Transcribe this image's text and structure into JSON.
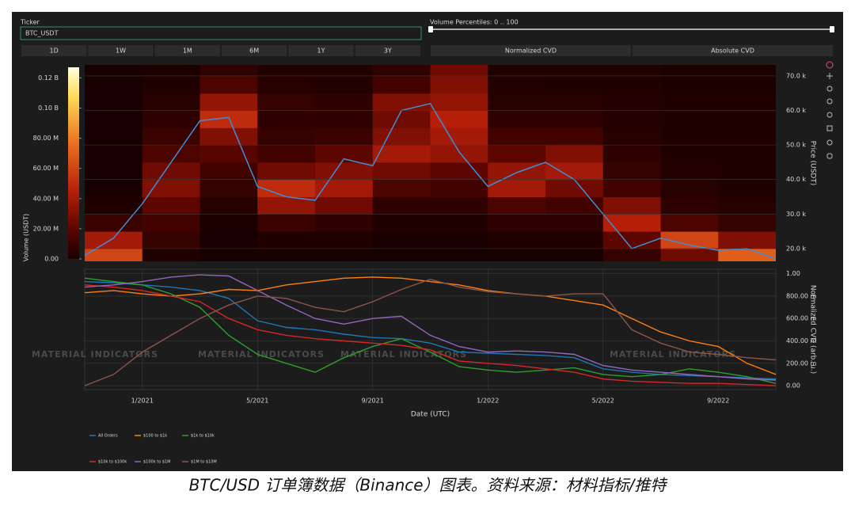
{
  "controls": {
    "ticker_label": "Ticker",
    "ticker_value": "BTC_USDT",
    "slider_label": "Volume Percentiles: 0 .. 100",
    "ranges": [
      "1D",
      "1W",
      "1M",
      "6M",
      "1Y",
      "3Y"
    ],
    "modes": [
      "Normalized CVD",
      "Absolute CVD"
    ]
  },
  "chart_data": [
    {
      "type": "heatmap",
      "x": [
        "11/2020",
        "12/2020",
        "1/2021",
        "2/2021",
        "3/2021",
        "4/2021",
        "5/2021",
        "6/2021",
        "7/2021",
        "8/2021",
        "9/2021",
        "10/2021",
        "11/2021",
        "12/2021",
        "1/2022",
        "2/2022",
        "3/2022",
        "4/2022",
        "5/2022",
        "6/2022",
        "7/2022",
        "8/2022",
        "9/2022",
        "10/2022",
        "11/2022"
      ],
      "values": [
        18000,
        23000,
        33000,
        45000,
        57000,
        58000,
        38000,
        35000,
        34000,
        46000,
        44000,
        60000,
        62000,
        48000,
        38000,
        42000,
        45000,
        40000,
        30000,
        20000,
        23000,
        21000,
        19500,
        20000,
        17000
      ],
      "line_color": "#3f8fd8",
      "y_label": "Price (USDT)",
      "ylim": [
        16300,
        73200
      ],
      "yticks": [
        {
          "value": 20000,
          "label": "20.0 k"
        },
        {
          "value": 30000,
          "label": "30.0 k"
        },
        {
          "value": 40000,
          "label": "40.0 k"
        },
        {
          "value": 50000,
          "label": "50.0 k"
        },
        {
          "value": 60000,
          "label": "60.0 k"
        },
        {
          "value": 70000,
          "label": "70.0 k"
        }
      ],
      "xbins": [
        "11/2020",
        "1/2021",
        "3/2021",
        "5/2021",
        "7/2021",
        "9/2021",
        "11/2021",
        "1/2022",
        "3/2022",
        "5/2022",
        "7/2022",
        "9/2022",
        "11/2022"
      ],
      "ybins": [
        15000,
        20000,
        25000,
        30000,
        35000,
        40000,
        45000,
        50000,
        55000,
        60000,
        65000,
        70000,
        75000
      ],
      "z": [
        [
          60000000.0,
          2000000.0,
          0,
          0,
          0,
          0,
          0,
          0,
          0,
          8000000.0,
          25000000.0,
          70000000.0
        ],
        [
          40000000.0,
          8000000.0,
          0,
          2000000.0,
          2000000.0,
          0,
          0,
          2000000.0,
          2000000.0,
          20000000.0,
          60000000.0,
          30000000.0
        ],
        [
          10000000.0,
          12000000.0,
          1000000.0,
          10000000.0,
          6000000.0,
          2000000.0,
          2000000.0,
          6000000.0,
          6000000.0,
          45000000.0,
          15000000.0,
          8000000.0
        ],
        [
          2000000.0,
          20000000.0,
          4000000.0,
          35000000.0,
          25000000.0,
          6000000.0,
          6000000.0,
          15000000.0,
          12000000.0,
          30000000.0,
          6000000.0,
          4000000.0
        ],
        [
          0,
          30000000.0,
          8000000.0,
          50000000.0,
          40000000.0,
          15000000.0,
          12000000.0,
          40000000.0,
          25000000.0,
          12000000.0,
          4000000.0,
          2000000.0
        ],
        [
          0,
          25000000.0,
          12000000.0,
          25000000.0,
          30000000.0,
          25000000.0,
          20000000.0,
          35000000.0,
          40000000.0,
          8000000.0,
          3000000.0,
          2000000.0
        ],
        [
          0,
          15000000.0,
          18000000.0,
          12000000.0,
          20000000.0,
          40000000.0,
          35000000.0,
          20000000.0,
          30000000.0,
          6000000.0,
          2000000.0,
          2000000.0
        ],
        [
          0,
          10000000.0,
          30000000.0,
          8000000.0,
          10000000.0,
          30000000.0,
          40000000.0,
          12000000.0,
          12000000.0,
          4000000.0,
          2000000.0,
          2000000.0
        ],
        [
          0,
          6000000.0,
          50000000.0,
          6000000.0,
          6000000.0,
          25000000.0,
          45000000.0,
          6000000.0,
          6000000.0,
          3000000.0,
          2000000.0,
          2000000.0
        ],
        [
          0,
          4000000.0,
          35000000.0,
          8000000.0,
          6000000.0,
          30000000.0,
          35000000.0,
          4000000.0,
          4000000.0,
          3000000.0,
          2000000.0,
          2000000.0
        ],
        [
          0,
          2000000.0,
          15000000.0,
          4000000.0,
          3000000.0,
          12000000.0,
          30000000.0,
          3000000.0,
          2000000.0,
          2000000.0,
          1000000.0,
          1000000.0
        ],
        [
          0,
          1000000.0,
          6000000.0,
          2000000.0,
          2000000.0,
          6000000.0,
          25000000.0,
          2000000.0,
          2000000.0,
          2000000.0,
          1000000.0,
          1000000.0
        ]
      ],
      "colorbar": {
        "title": "Volume (USDT)",
        "lim": [
          0,
          127000000
        ],
        "ticks": [
          {
            "value": 0,
            "label": "0.00"
          },
          {
            "value": 20000000,
            "label": "20.00 M"
          },
          {
            "value": 40000000,
            "label": "40.00 M"
          },
          {
            "value": 60000000,
            "label": "60.00 M"
          },
          {
            "value": 80000000,
            "label": "80.00 M"
          },
          {
            "value": 100000000,
            "label": "0.10 B"
          },
          {
            "value": 120000000,
            "label": "0.12 B"
          }
        ]
      }
    },
    {
      "type": "line",
      "x": [
        "11/2020",
        "12/2020",
        "1/2021",
        "2/2021",
        "3/2021",
        "4/2021",
        "5/2021",
        "6/2021",
        "7/2021",
        "8/2021",
        "9/2021",
        "10/2021",
        "11/2021",
        "12/2021",
        "1/2022",
        "2/2022",
        "3/2022",
        "4/2022",
        "5/2022",
        "6/2022",
        "7/2022",
        "8/2022",
        "9/2022",
        "10/2022",
        "11/2022"
      ],
      "xticks": [
        "1/2021",
        "5/2021",
        "9/2021",
        "1/2022",
        "5/2022",
        "9/2022"
      ],
      "x_label": "Date (UTC)",
      "y_label": "Normalized CVD (arb. u.)",
      "ylim": [
        -0.035,
        1.04
      ],
      "yticks": [
        {
          "value": 0,
          "label": "0.00"
        },
        {
          "value": 0.2,
          "label": "200.00 m"
        },
        {
          "value": 0.4,
          "label": "400.00 m"
        },
        {
          "value": 0.6,
          "label": "600.00 m"
        },
        {
          "value": 0.8,
          "label": "800.00 m"
        },
        {
          "value": 1,
          "label": "1.00"
        }
      ],
      "grid": true,
      "legend": "bottom",
      "series": [
        {
          "name": "All Orders",
          "color": "#1f77b4",
          "values": [
            0.93,
            0.92,
            0.9,
            0.88,
            0.85,
            0.78,
            0.58,
            0.52,
            0.5,
            0.46,
            0.43,
            0.42,
            0.38,
            0.3,
            0.29,
            0.28,
            0.27,
            0.25,
            0.15,
            0.12,
            0.1,
            0.09,
            0.08,
            0.07,
            0.06
          ]
        },
        {
          "name": "$100 to $1k",
          "color": "#ff7f0e",
          "values": [
            0.83,
            0.85,
            0.82,
            0.8,
            0.82,
            0.86,
            0.85,
            0.9,
            0.93,
            0.96,
            0.97,
            0.96,
            0.93,
            0.9,
            0.85,
            0.82,
            0.8,
            0.76,
            0.72,
            0.6,
            0.48,
            0.4,
            0.35,
            0.2,
            0.1
          ]
        },
        {
          "name": "$1k to $10k",
          "color": "#2ca02c",
          "values": [
            0.96,
            0.93,
            0.9,
            0.82,
            0.7,
            0.45,
            0.28,
            0.2,
            0.12,
            0.25,
            0.35,
            0.42,
            0.3,
            0.17,
            0.14,
            0.12,
            0.14,
            0.16,
            0.1,
            0.08,
            0.1,
            0.15,
            0.12,
            0.08,
            0.02
          ]
        },
        {
          "name": "$10k to $100k",
          "color": "#d62728",
          "values": [
            0.9,
            0.88,
            0.85,
            0.8,
            0.75,
            0.6,
            0.5,
            0.45,
            0.42,
            0.4,
            0.38,
            0.36,
            0.32,
            0.22,
            0.2,
            0.18,
            0.15,
            0.12,
            0.06,
            0.04,
            0.03,
            0.02,
            0.02,
            0.01,
            0.0
          ]
        },
        {
          "name": "$100k to $1M",
          "color": "#9467bd",
          "values": [
            0.88,
            0.9,
            0.93,
            0.97,
            0.99,
            0.98,
            0.85,
            0.72,
            0.6,
            0.55,
            0.6,
            0.62,
            0.45,
            0.35,
            0.3,
            0.31,
            0.3,
            0.28,
            0.18,
            0.14,
            0.12,
            0.1,
            0.08,
            0.06,
            0.05
          ]
        },
        {
          "name": "$1M to $10M",
          "color": "#8c564b",
          "values": [
            0.0,
            0.1,
            0.3,
            0.45,
            0.6,
            0.72,
            0.8,
            0.78,
            0.7,
            0.66,
            0.75,
            0.86,
            0.95,
            0.88,
            0.84,
            0.82,
            0.8,
            0.82,
            0.82,
            0.5,
            0.38,
            0.3,
            0.28,
            0.25,
            0.23
          ]
        }
      ]
    }
  ],
  "watermark": "MATERIAL INDICATORS",
  "caption": "BTC/USD 订单簿数据（Binance）图表。资料来源：材料指标/推特"
}
